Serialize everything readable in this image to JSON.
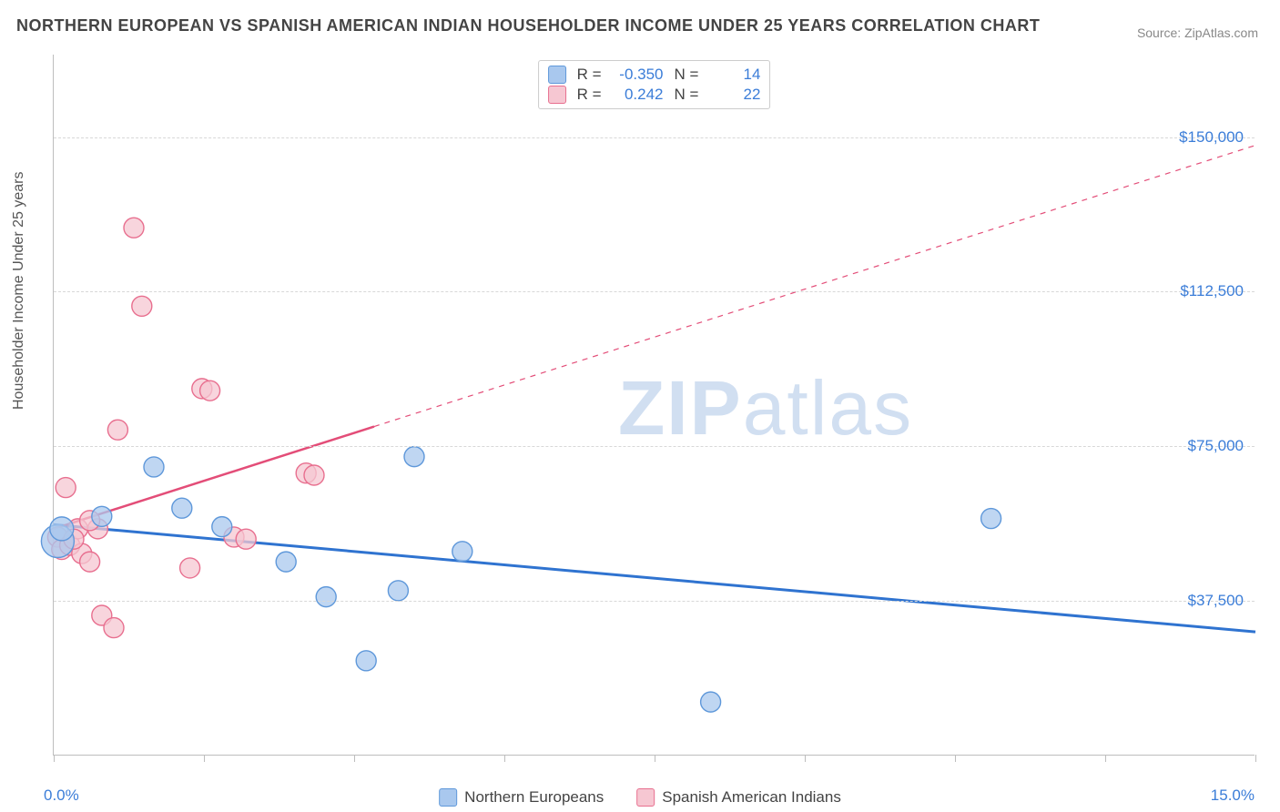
{
  "title": "NORTHERN EUROPEAN VS SPANISH AMERICAN INDIAN HOUSEHOLDER INCOME UNDER 25 YEARS CORRELATION CHART",
  "source": "Source: ZipAtlas.com",
  "y_axis_label": "Householder Income Under 25 years",
  "chart": {
    "type": "scatter",
    "xlim": [
      0,
      15
    ],
    "ylim": [
      0,
      170000
    ],
    "x_tick_percent": [
      0,
      1.875,
      3.75,
      5.625,
      7.5,
      9.375,
      11.25,
      13.125,
      15
    ],
    "x_min_label": "0.0%",
    "x_max_label": "15.0%",
    "y_ticks": [
      {
        "value": 37500,
        "label": "$37,500"
      },
      {
        "value": 75000,
        "label": "$75,000"
      },
      {
        "value": 112500,
        "label": "$112,500"
      },
      {
        "value": 150000,
        "label": "$150,000"
      }
    ],
    "grid_color": "#d8d8d8",
    "background_color": "#ffffff",
    "axis_color": "#bdbdbd",
    "tick_label_color": "#3b7dd8",
    "series": [
      {
        "name": "Northern Europeans",
        "fill": "#a9c8ee",
        "stroke": "#5f98da",
        "line_color": "#2f73d0",
        "line_width": 3,
        "marker_radius": 11,
        "r_value": "-0.350",
        "n_value": "14",
        "trend": {
          "x1": 0,
          "y1": 56000,
          "x2": 15,
          "y2": 30000,
          "dash_from_x": null
        },
        "points": [
          {
            "x": 0.05,
            "y": 52000,
            "r": 18
          },
          {
            "x": 0.1,
            "y": 55000,
            "r": 13
          },
          {
            "x": 0.6,
            "y": 58000,
            "r": 11
          },
          {
            "x": 1.25,
            "y": 70000,
            "r": 11
          },
          {
            "x": 1.6,
            "y": 60000,
            "r": 11
          },
          {
            "x": 2.1,
            "y": 55500,
            "r": 11
          },
          {
            "x": 2.9,
            "y": 47000,
            "r": 11
          },
          {
            "x": 3.4,
            "y": 38500,
            "r": 11
          },
          {
            "x": 3.9,
            "y": 23000,
            "r": 11
          },
          {
            "x": 4.3,
            "y": 40000,
            "r": 11
          },
          {
            "x": 4.5,
            "y": 72500,
            "r": 11
          },
          {
            "x": 5.1,
            "y": 49500,
            "r": 11
          },
          {
            "x": 8.2,
            "y": 13000,
            "r": 11
          },
          {
            "x": 11.7,
            "y": 57500,
            "r": 11
          }
        ]
      },
      {
        "name": "Spanish American Indians",
        "fill": "#f6c7d2",
        "stroke": "#e86f8f",
        "line_color": "#e34d78",
        "line_width": 2.5,
        "marker_radius": 11,
        "r_value": "0.242",
        "n_value": "22",
        "trend": {
          "x1": 0,
          "y1": 55000,
          "x2": 15,
          "y2": 148000,
          "dash_from_x": 4.0
        },
        "points": [
          {
            "x": 0.05,
            "y": 53000,
            "r": 11
          },
          {
            "x": 0.1,
            "y": 50000,
            "r": 11
          },
          {
            "x": 0.15,
            "y": 65000,
            "r": 11
          },
          {
            "x": 0.2,
            "y": 51000,
            "r": 11
          },
          {
            "x": 0.3,
            "y": 55000,
            "r": 11
          },
          {
            "x": 0.35,
            "y": 49000,
            "r": 11
          },
          {
            "x": 0.45,
            "y": 47000,
            "r": 11
          },
          {
            "x": 0.55,
            "y": 55000,
            "r": 11
          },
          {
            "x": 0.6,
            "y": 34000,
            "r": 11
          },
          {
            "x": 0.75,
            "y": 31000,
            "r": 11
          },
          {
            "x": 0.8,
            "y": 79000,
            "r": 11
          },
          {
            "x": 1.0,
            "y": 128000,
            "r": 11
          },
          {
            "x": 1.1,
            "y": 109000,
            "r": 11
          },
          {
            "x": 1.7,
            "y": 45500,
            "r": 11
          },
          {
            "x": 1.85,
            "y": 89000,
            "r": 11
          },
          {
            "x": 1.95,
            "y": 88500,
            "r": 11
          },
          {
            "x": 2.25,
            "y": 53000,
            "r": 11
          },
          {
            "x": 2.4,
            "y": 52500,
            "r": 11
          },
          {
            "x": 3.15,
            "y": 68500,
            "r": 11
          },
          {
            "x": 3.25,
            "y": 68000,
            "r": 11
          },
          {
            "x": 0.45,
            "y": 57000,
            "r": 11
          },
          {
            "x": 0.25,
            "y": 52500,
            "r": 11
          }
        ]
      }
    ],
    "watermark": {
      "zip": "ZIP",
      "atlas": "atlas",
      "color": "#9bb9e2",
      "opacity": 0.45,
      "fontsize": 84
    }
  },
  "legend_r_label": "R =",
  "legend_n_label": "N ="
}
